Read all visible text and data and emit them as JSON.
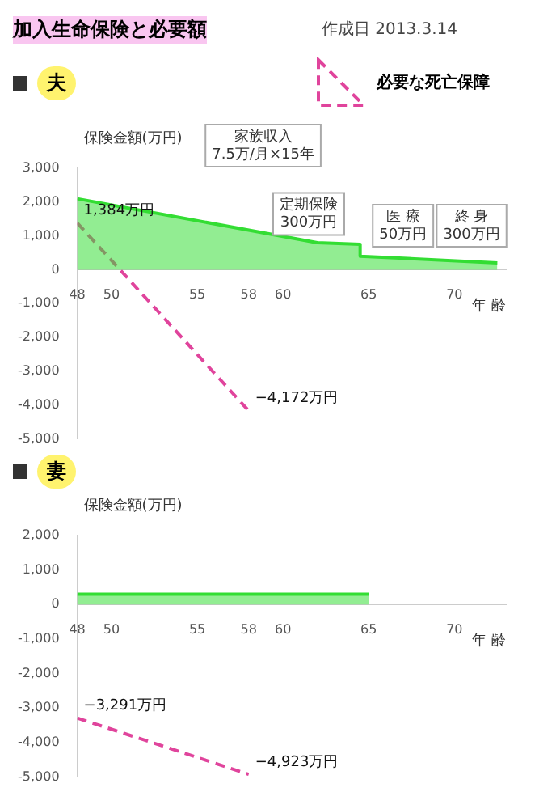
{
  "chart_data": [
    {
      "type": "line",
      "title": "加入生命保険と必要額",
      "subtitle": "夫",
      "legend": "top right",
      "xlabel": "年 齢",
      "ylabel": "保険金額(万円)",
      "xlim": [
        48,
        73
      ],
      "xticks": [
        48,
        50,
        55,
        58,
        60,
        65,
        70
      ],
      "ylim": [
        -5000,
        3000
      ],
      "yticks": [
        {
          "value": 3000,
          "label": "3,000"
        },
        {
          "value": 2000,
          "label": "2,000"
        },
        {
          "value": 1000,
          "label": "1,000"
        },
        0,
        {
          "value": -1000,
          "label": "-1,000"
        },
        {
          "value": -2000,
          "label": "-2,000"
        },
        {
          "value": -3000,
          "label": "-3,000"
        },
        {
          "value": -4000,
          "label": "-4,000"
        },
        {
          "value": -5000,
          "label": "-5,000"
        }
      ],
      "series": [
        {
          "type": "area",
          "color": "#33dd33",
          "x": [
            48,
            62,
            64.5,
            64.5,
            72.5
          ],
          "values": [
            2100,
            800,
            750,
            400,
            200
          ]
        },
        {
          "type": "line",
          "name": "必要な死亡保障",
          "color": "#e0449c",
          "line_style": "dashed",
          "x": [
            48,
            58
          ],
          "values": [
            1384,
            -4172
          ]
        }
      ],
      "annotations": [
        "作成日 2013.3.14",
        "家族収入\n7.5万/月×15年",
        {
          "text": "定期保険\n300万円",
          "x": 61.5,
          "y": 1650
        },
        {
          "text": "医 療\n50万円",
          "x": 67,
          "y": 1300
        },
        {
          "text": "終 身\n300万円",
          "x": 71,
          "y": 1300
        },
        {
          "text": "1,384万円",
          "x": 48,
          "y": 1384
        },
        {
          "text": "−4,172万円",
          "x": 58,
          "y": -4172
        }
      ]
    },
    {
      "type": "line",
      "subtitle": "妻",
      "xlabel": "年 齢",
      "ylabel": "保険金額(万円)",
      "xlim": [
        48,
        73
      ],
      "xticks": [
        48,
        50,
        55,
        58,
        60,
        65,
        70
      ],
      "ylim": [
        -5000,
        2000
      ],
      "yticks": [
        {
          "value": 2000,
          "label": "2,000"
        },
        {
          "value": 1000,
          "label": "1,000"
        },
        0,
        {
          "value": -1000,
          "label": "-1,000"
        },
        {
          "value": -2000,
          "label": "-2,000"
        },
        {
          "value": -3000,
          "label": "-3,000"
        },
        {
          "value": -4000,
          "label": "-4,000"
        },
        {
          "value": -5000,
          "label": "-5,000"
        }
      ],
      "series": [
        {
          "type": "area",
          "color": "#33dd33",
          "x": [
            48,
            65
          ],
          "values": [
            300,
            300
          ]
        },
        {
          "type": "line",
          "color": "#e0449c",
          "line_style": "dashed",
          "x": [
            48,
            58
          ],
          "values": [
            -3291,
            -4923
          ]
        }
      ],
      "annotations": [
        {
          "text": "−3,291万円",
          "x": 48,
          "y": -3291
        },
        {
          "text": "−4,923万円",
          "x": 58,
          "y": -4923
        }
      ]
    }
  ]
}
